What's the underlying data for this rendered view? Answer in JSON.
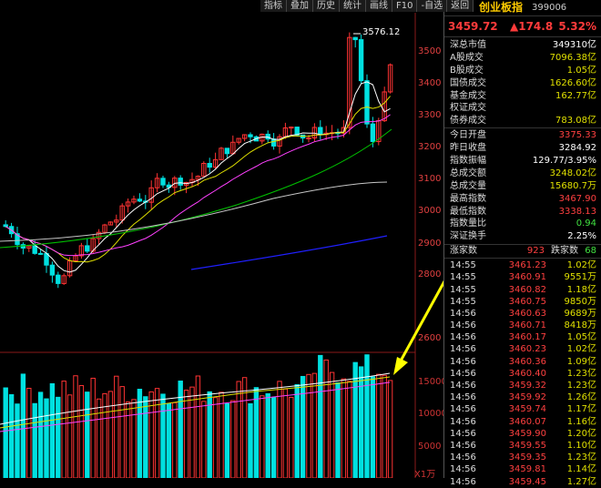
{
  "toolbar": [
    "指标",
    "叠加",
    "历史",
    "统计",
    "画线",
    "F10",
    "-自选",
    "返回"
  ],
  "chart": {
    "high_label": "3576.12",
    "price_ticks": [
      "3500",
      "3400",
      "3300",
      "3200",
      "3100",
      "3000",
      "2900",
      "2800",
      "2600"
    ],
    "vol_ticks": [
      "15000",
      "10000",
      "5000"
    ],
    "vol_unit": "X1万",
    "colors": {
      "up": "#ff3333",
      "down": "#00e0e0",
      "ma5": "#ffffff",
      "ma10": "#e0e000",
      "ma20": "#ff40ff",
      "ma60": "#00c000",
      "ma120": "#c8c8c8",
      "ma250": "#2020ff",
      "arrow": "#ffff00"
    }
  },
  "panel": {
    "code_num": "6",
    "name": "创业板指",
    "code": "399006",
    "price": "3459.72",
    "change": "▲174.8",
    "change_pct": "5.32%",
    "stats": [
      {
        "label": "深总市值",
        "value": "349310亿",
        "color": "#ffffff"
      },
      {
        "label": "A股成交",
        "value": "7096.38亿",
        "color": "#e0e000"
      },
      {
        "label": "B股成交",
        "value": "1.05亿",
        "color": "#e0e000"
      },
      {
        "label": "国债成交",
        "value": "1626.60亿",
        "color": "#e0e000"
      },
      {
        "label": "基金成交",
        "value": "162.77亿",
        "color": "#e0e000"
      },
      {
        "label": "权证成交",
        "value": "",
        "color": "#e0e000"
      },
      {
        "label": "债券成交",
        "value": "783.08亿",
        "color": "#e0e000"
      }
    ],
    "stats2": [
      {
        "label": "今日开盘",
        "value": "3375.33",
        "color": "#ff4040"
      },
      {
        "label": "昨日收盘",
        "value": "3284.92",
        "color": "#ffffff"
      },
      {
        "label": "指数振幅",
        "value": "129.77/3.95%",
        "color": "#ffffff"
      },
      {
        "label": "总成交额",
        "value": "3248.02亿",
        "color": "#e0e000"
      },
      {
        "label": "总成交量",
        "value": "15680.7万",
        "color": "#e0e000"
      },
      {
        "label": "最高指数",
        "value": "3467.90",
        "color": "#ff4040"
      },
      {
        "label": "最低指数",
        "value": "3338.13",
        "color": "#ff4040"
      },
      {
        "label": "指数量比",
        "value": "0.94",
        "color": "#40e040"
      },
      {
        "label": "深证换手",
        "value": "2.25%",
        "color": "#ffffff"
      }
    ],
    "updown": {
      "up_label": "涨家数",
      "up_value": "923",
      "down_label": "跌家数",
      "down_value": "68"
    },
    "trades": [
      {
        "time": "14:55",
        "price": "3461.23",
        "vol": "1.02亿"
      },
      {
        "time": "14:55",
        "price": "3460.91",
        "vol": "9551万"
      },
      {
        "time": "14:55",
        "price": "3460.82",
        "vol": "1.18亿"
      },
      {
        "time": "14:55",
        "price": "3460.75",
        "vol": "9850万"
      },
      {
        "time": "14:56",
        "price": "3460.63",
        "vol": "9689万"
      },
      {
        "time": "14:56",
        "price": "3460.71",
        "vol": "8418万"
      },
      {
        "time": "14:56",
        "price": "3460.17",
        "vol": "1.05亿"
      },
      {
        "time": "14:56",
        "price": "3460.23",
        "vol": "1.02亿"
      },
      {
        "time": "14:56",
        "price": "3460.36",
        "vol": "1.09亿"
      },
      {
        "time": "14:56",
        "price": "3460.40",
        "vol": "1.23亿"
      },
      {
        "time": "14:56",
        "price": "3459.32",
        "vol": "1.23亿"
      },
      {
        "time": "14:56",
        "price": "3459.92",
        "vol": "1.26亿"
      },
      {
        "time": "14:56",
        "price": "3459.74",
        "vol": "1.17亿"
      },
      {
        "time": "14:56",
        "price": "3460.07",
        "vol": "1.16亿"
      },
      {
        "time": "14:56",
        "price": "3459.90",
        "vol": "1.20亿"
      },
      {
        "time": "14:56",
        "price": "3459.55",
        "vol": "1.10亿"
      },
      {
        "time": "14:56",
        "price": "3459.35",
        "vol": "1.23亿"
      },
      {
        "time": "14:56",
        "price": "3459.81",
        "vol": "1.14亿"
      },
      {
        "time": "14:56",
        "price": "3459.45",
        "vol": "1.27亿"
      }
    ]
  }
}
